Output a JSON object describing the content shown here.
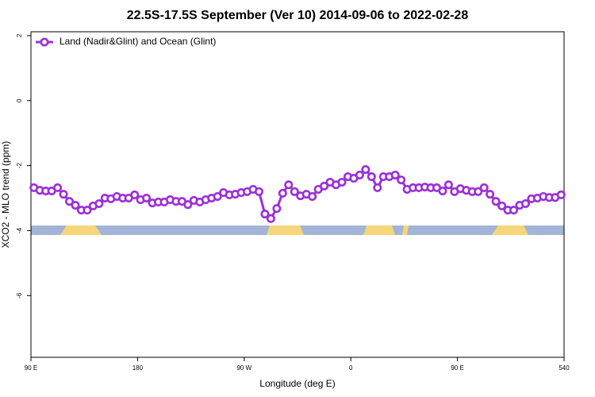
{
  "chart_data": {
    "type": "line",
    "title": "22.5S-17.5S September (Ver 10)   2014-09-06 to 2022-02-28",
    "x_label": "Longitude (deg E)",
    "y_label": "XCO2 - MLO trend (ppm)",
    "xlim": [
      90,
      540
    ],
    "ylim": [
      -7.9,
      2.12
    ],
    "xticks": [
      {
        "value": 90,
        "label": "90 E"
      },
      180,
      {
        "value": 270,
        "label": "90 W"
      },
      {
        "value": 360,
        "label": "0"
      },
      {
        "value": 450,
        "label": "90 E"
      },
      540
    ],
    "yticks": [
      2,
      0,
      -2,
      -4,
      -6
    ],
    "legend": "top-left",
    "x": [
      92.5,
      97.5,
      102.5,
      107.5,
      112.5,
      117.5,
      122.5,
      127.5,
      132.5,
      137.5,
      142.5,
      147.5,
      152.5,
      157.5,
      162.5,
      167.5,
      172.5,
      177.5,
      182.5,
      187.5,
      192.5,
      197.5,
      202.5,
      207.5,
      212.5,
      217.5,
      222.5,
      227.5,
      232.5,
      237.5,
      242.5,
      247.5,
      252.5,
      257.5,
      262.5,
      267.5,
      272.5,
      277.5,
      282.5,
      287.5,
      292.5,
      297.5,
      302.5,
      307.5,
      312.5,
      317.5,
      322.5,
      327.5,
      332.5,
      337.5,
      342.5,
      347.5,
      352.5,
      357.5,
      362.5,
      367.5,
      372.5,
      377.5,
      382.5,
      387.5,
      392.5,
      397.5,
      402.5,
      407.5,
      412.5,
      417.5,
      422.5,
      427.5,
      432.5,
      437.5,
      442.5,
      447.5,
      452.5,
      457.5,
      462.5,
      467.5,
      472.5,
      477.5,
      482.5,
      487.5,
      492.5,
      497.5,
      502.5,
      507.5,
      512.5,
      517.5,
      522.5,
      527.5,
      532.5,
      537.5
    ],
    "series": [
      {
        "name": "Land (Nadir&Glint) and Ocean (Glint)",
        "color": "#9b2fd9",
        "values": [
          -2.68,
          -2.76,
          -2.78,
          -2.78,
          -2.68,
          -2.88,
          -3.1,
          -3.22,
          -3.37,
          -3.37,
          -3.24,
          -3.17,
          -3.0,
          -3.02,
          -2.95,
          -3.0,
          -3.0,
          -2.9,
          -3.05,
          -3.0,
          -3.15,
          -3.12,
          -3.12,
          -3.05,
          -3.1,
          -3.1,
          -3.2,
          -3.07,
          -3.12,
          -3.05,
          -3.0,
          -2.95,
          -2.83,
          -2.9,
          -2.88,
          -2.83,
          -2.8,
          -2.73,
          -2.8,
          -3.49,
          -3.63,
          -3.32,
          -2.85,
          -2.59,
          -2.8,
          -2.93,
          -2.88,
          -2.95,
          -2.73,
          -2.63,
          -2.51,
          -2.59,
          -2.51,
          -2.34,
          -2.39,
          -2.29,
          -2.12,
          -2.34,
          -2.68,
          -2.34,
          -2.34,
          -2.29,
          -2.44,
          -2.73,
          -2.68,
          -2.68,
          -2.66,
          -2.68,
          -2.68,
          -2.78,
          -2.59,
          -2.8,
          -2.71,
          -2.76,
          -2.8,
          -2.8,
          -2.68,
          -2.88,
          -3.1,
          -3.24,
          -3.37,
          -3.37,
          -3.22,
          -3.17,
          -3.02,
          -3.0,
          -2.95,
          -2.98,
          -2.98,
          -2.9
        ]
      }
    ]
  }
}
